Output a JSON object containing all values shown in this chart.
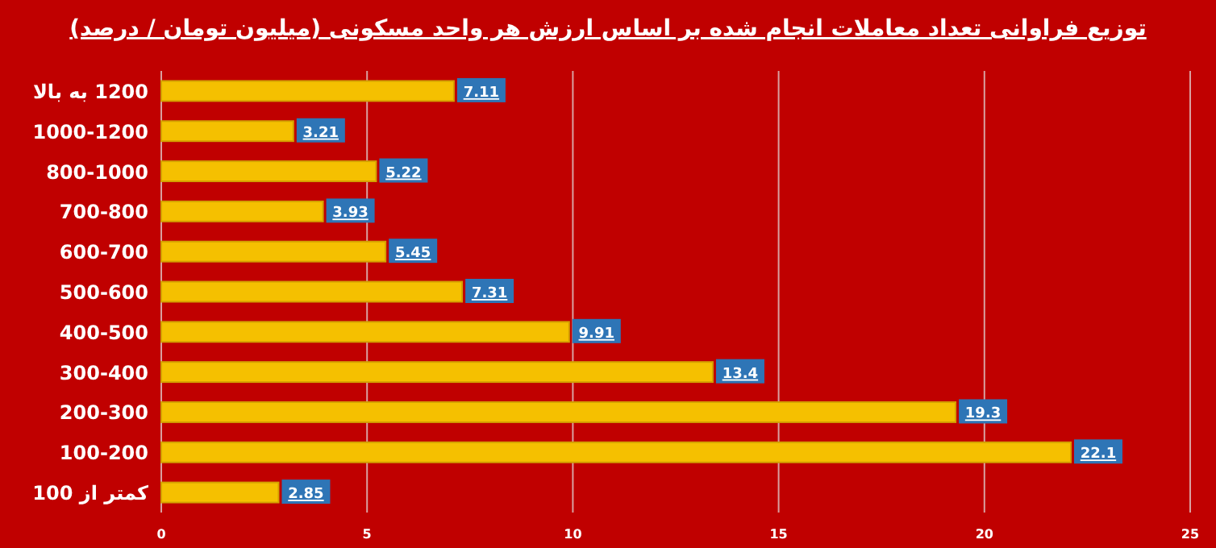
{
  "chart_data": {
    "type": "bar",
    "orientation": "horizontal",
    "title": "توزیع فراوانی تعداد معاملات انجام شده بر اساس ارزش هر واحد مسکونی (میلیون تومان / درصد)",
    "categories": [
      "1200 به بالا",
      "1000-1200",
      "800-1000",
      "700-800",
      "600-700",
      "500-600",
      "400-500",
      "300-400",
      "200-300",
      "100-200",
      "کمتر از 100"
    ],
    "values": [
      7.11,
      3.21,
      5.22,
      3.93,
      5.45,
      7.31,
      9.91,
      13.4,
      19.3,
      22.1,
      2.85
    ],
    "color": "#f5c000",
    "xlim": [
      0,
      25
    ],
    "xticks": [
      0,
      5,
      10,
      15,
      20,
      25
    ],
    "grid": "x",
    "data_labels": true
  }
}
